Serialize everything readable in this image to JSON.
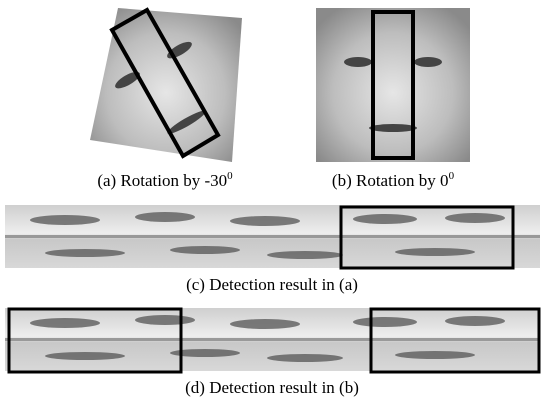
{
  "figure": {
    "captions": [
      {
        "text": "(a) Rotation by -30",
        "sup": "0"
      },
      {
        "text": "(b) Rotation by 0",
        "sup": "0"
      },
      {
        "text": "(c) Detection result in (a)"
      },
      {
        "text": "(d) Detection result in (b)"
      }
    ]
  }
}
